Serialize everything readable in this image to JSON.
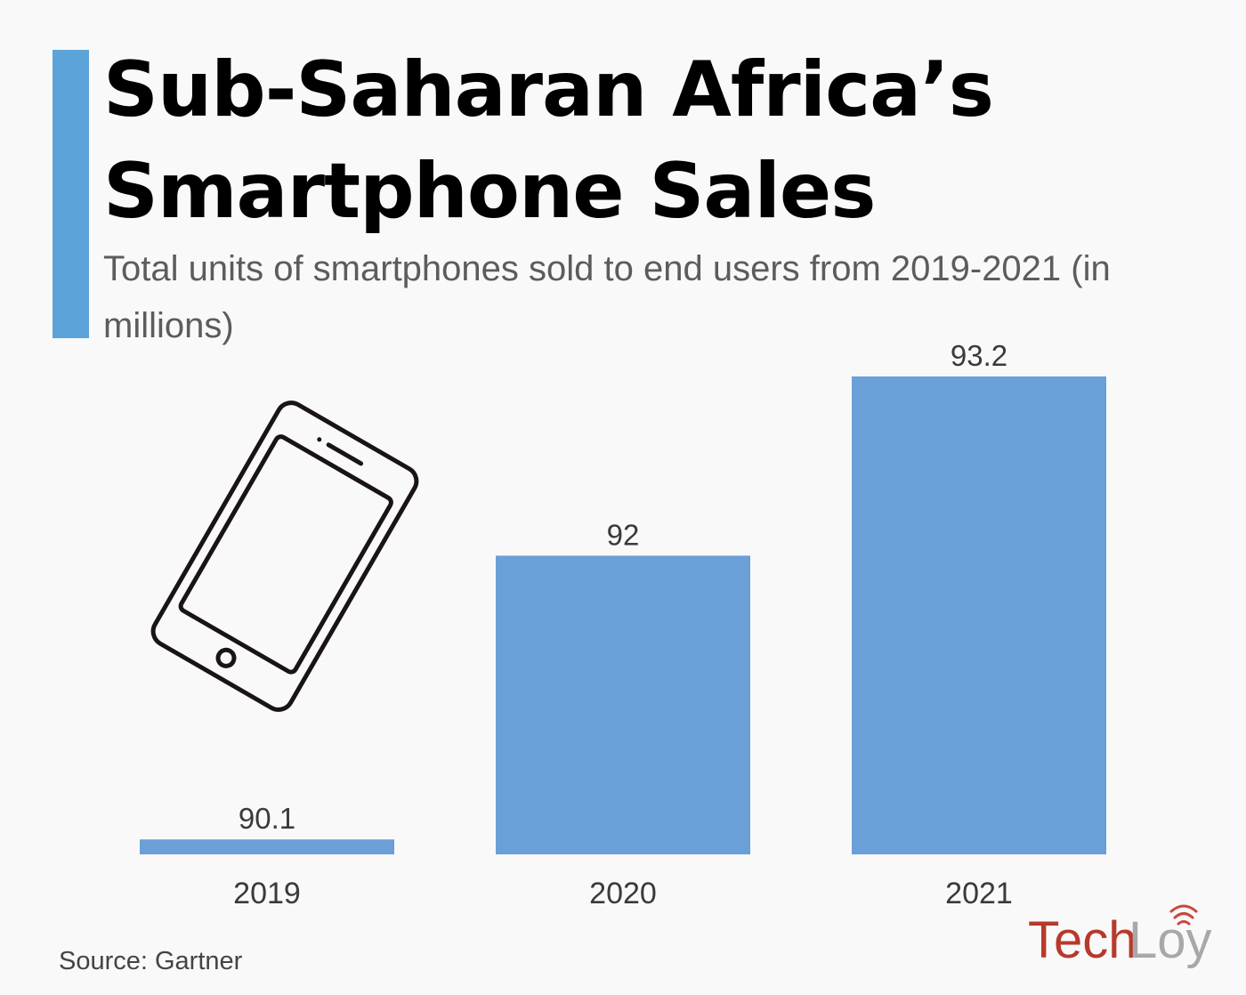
{
  "header": {
    "title_line1": "Sub-Saharan Africa’s",
    "title_line2": "Smartphone Sales",
    "subtitle": "Total units of smartphones sold to end users from 2019-2021 (in millions)"
  },
  "footer": {
    "source": "Source: Gartner",
    "logo_part1": "Tech",
    "logo_part2": "Loy"
  },
  "colors": {
    "accent": "#5ba3d8",
    "bar": "#6b9fd8",
    "logo_red": "#b8392b",
    "logo_gray": "#a8a8a8"
  },
  "icons": {
    "illustration": "smartphone-icon",
    "logo_signal": "wifi-signal-icon"
  },
  "chart_data": {
    "type": "bar",
    "title": "Sub-Saharan Africa’s Smartphone Sales",
    "subtitle": "Total units of smartphones sold to end users from 2019-2021 (in millions)",
    "categories": [
      "2019",
      "2020",
      "2021"
    ],
    "values": [
      90.1,
      92,
      93.2
    ],
    "data_labels": [
      "90.1",
      "92",
      "93.2"
    ],
    "xlabel": "",
    "ylabel": "",
    "ylim": [
      90.0,
      93.2
    ],
    "grid": false,
    "legend": "none",
    "y_axis_visible": false
  }
}
